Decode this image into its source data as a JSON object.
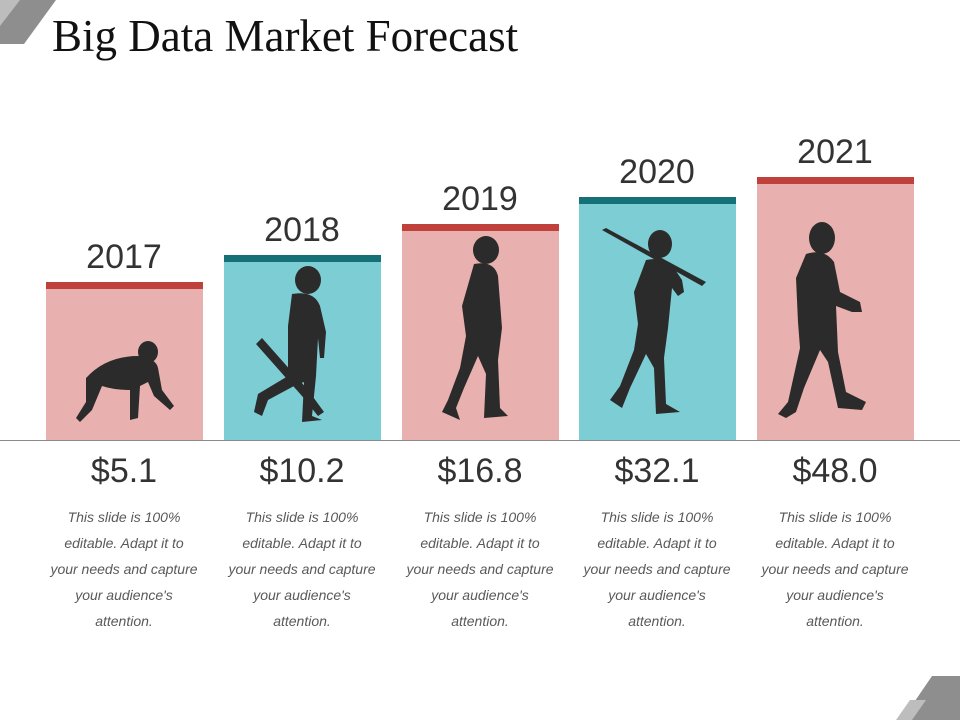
{
  "title": "Big Data Market Forecast",
  "colors": {
    "pink_fill": "#e8b0ae",
    "teal_fill": "#7ccdd4",
    "red_cap": "#c0403c",
    "teal_cap": "#157078",
    "silhouette": "#2b2b2b",
    "corner_gray": "#8e8e8e"
  },
  "chart_data": {
    "type": "bar",
    "categories": [
      "2017",
      "2018",
      "2019",
      "2020",
      "2021"
    ],
    "values": [
      5.1,
      10.2,
      16.8,
      32.1,
      48.0
    ],
    "value_labels": [
      "$5.1",
      "$10.2",
      "$16.8",
      "$32.1",
      "$48.0"
    ],
    "title": "Big Data Market Forecast",
    "xlabel": "",
    "ylabel": "",
    "grid": false,
    "legend": "none"
  },
  "descriptions": [
    "This slide is 100% editable. Adapt it to your needs and capture your audience's attention.",
    "This slide is 100% editable. Adapt it to your needs and capture your audience's attention.",
    "This slide is 100% editable. Adapt it to your needs and capture your audience's attention.",
    "This slide is 100% editable. Adapt it to your needs and capture your audience's attention.",
    "This slide is 100% editable. Adapt it to your needs and capture your audience's attention."
  ],
  "silhouettes": [
    "crawling-ape-icon",
    "ape-with-stick-icon",
    "early-human-icon",
    "human-with-spear-icon",
    "modern-human-icon"
  ]
}
